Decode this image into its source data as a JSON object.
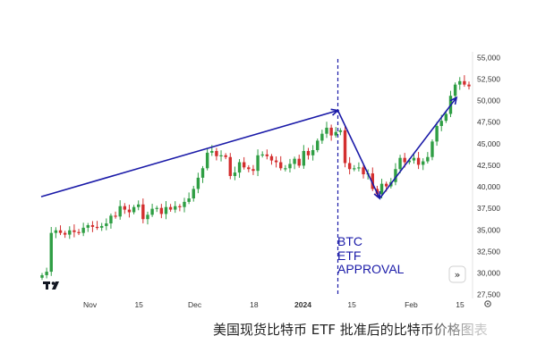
{
  "chart_data": {
    "type": "candlestick",
    "title": "",
    "xlabel": "",
    "ylabel": "",
    "ylim": [
      27000,
      55600
    ],
    "y_ticks": [
      27500,
      30000,
      32500,
      35000,
      37500,
      40000,
      42500,
      45000,
      47500,
      50000,
      52500,
      55000
    ],
    "y_tick_labels": [
      "27,500",
      "30,000",
      "32,500",
      "35,000",
      "37,500",
      "40,000",
      "42,500",
      "45,000",
      "47,500",
      "50,000",
      "52,500",
      "55,000"
    ],
    "x_tick_labels": [
      {
        "label": "Nov",
        "date": "2023-11-01"
      },
      {
        "label": "15",
        "date": "2023-11-15"
      },
      {
        "label": "Dec",
        "date": "2023-12-01"
      },
      {
        "label": "18",
        "date": "2023-12-18"
      },
      {
        "label": "2024",
        "date": "2024-01-01"
      },
      {
        "label": "15",
        "date": "2024-01-15"
      },
      {
        "label": "Feb",
        "date": "2024-02-01"
      },
      {
        "label": "15",
        "date": "2024-02-15"
      }
    ],
    "closes": [
      29700,
      30100,
      34600,
      34900,
      34600,
      34400,
      34900,
      34700,
      34600,
      35200,
      35500,
      35300,
      35200,
      35400,
      35700,
      36600,
      36500,
      37700,
      37300,
      37000,
      37600,
      37900,
      36200,
      36700,
      37400,
      37500,
      36800,
      37600,
      37300,
      37700,
      37600,
      38200,
      38600,
      39700,
      41000,
      42100,
      43900,
      44100,
      43500,
      43600,
      43400,
      41200,
      41600,
      42800,
      42200,
      42000,
      41800,
      43600,
      43700,
      43500,
      43000,
      42800,
      42100,
      42100,
      42600,
      43200,
      42400,
      44100,
      43600,
      44200,
      45300,
      46100,
      46800,
      45900,
      46300,
      46500,
      42700,
      42000,
      42100,
      42200,
      41400,
      41500,
      39700,
      39100,
      40300,
      40000,
      40500,
      42000,
      43300,
      42800,
      43000,
      43300,
      42500,
      42900,
      43400,
      45200,
      47000,
      47600,
      48400,
      50500,
      51800,
      52200,
      51800,
      51600
    ],
    "colors": {
      "up": "#2f9e44",
      "down": "#d32f2f",
      "trendline": "#1a1aa8",
      "approval_line": "#1a1aa8"
    },
    "annotations": [
      {
        "text": "BTC",
        "date": "2024-01-11"
      },
      {
        "text": "ETF",
        "date": "2024-01-11"
      },
      {
        "text": "APPROVAL",
        "date": "2024-01-11"
      }
    ],
    "trend_arrows": [
      {
        "from": {
          "date": "2023-10-18",
          "price": 38800
        },
        "to": {
          "date": "2024-01-11",
          "price": 48800
        }
      },
      {
        "from": {
          "date": "2024-01-11",
          "price": 48800
        },
        "to": {
          "date": "2024-01-23",
          "price": 38600
        }
      },
      {
        "from": {
          "date": "2024-01-23",
          "price": 38600
        },
        "to": {
          "date": "2024-02-14",
          "price": 50300
        }
      }
    ],
    "vertical_marker": {
      "date": "2024-01-11",
      "style": "dashed"
    },
    "grid": false,
    "legend": "none"
  },
  "caption": "美国现货比特币 ETF 批准后的比特币价格图表",
  "icons": {
    "logo": "tradingview-logo-icon",
    "settings": "gear-icon",
    "scroll": "scroll-to-latest-icon"
  }
}
